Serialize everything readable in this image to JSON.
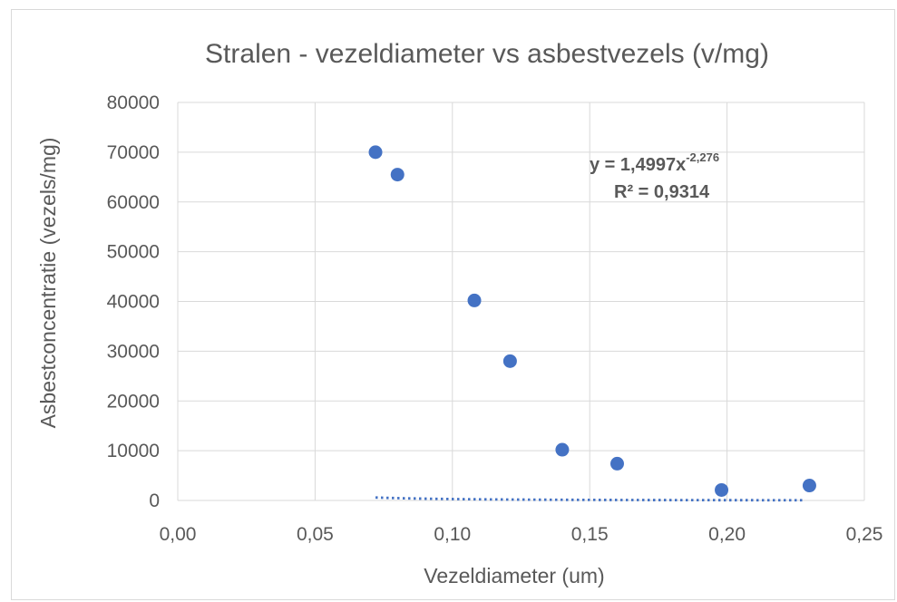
{
  "chart_data": {
    "type": "scatter",
    "title": "Stralen - vezeldiameter vs asbestvezels (v/mg)",
    "xlabel": "Vezeldiameter (um)",
    "ylabel": "Asbestconcentratie (vezels/mg)",
    "xlim": [
      0,
      0.25
    ],
    "ylim": [
      0,
      80000
    ],
    "x_ticks": [
      "0,00",
      "0,05",
      "0,10",
      "0,15",
      "0,20",
      "0,25"
    ],
    "y_ticks": [
      "0",
      "10000",
      "20000",
      "30000",
      "40000",
      "50000",
      "60000",
      "70000",
      "80000"
    ],
    "grid": true,
    "legend": "none",
    "colors": {
      "marker": "#4472c4",
      "trendline": "#4472c4",
      "gridline": "#d9d9d9",
      "text": "#595959"
    },
    "series": [
      {
        "x": [
          0.072,
          0.08,
          0.108,
          0.121,
          0.14,
          0.16,
          0.198,
          0.23
        ],
        "y": [
          70000,
          65500,
          40200,
          28000,
          10200,
          7400,
          2100,
          3000
        ]
      }
    ],
    "trendline": {
      "type": "power",
      "coefficient": 1.4997,
      "exponent": -2.276,
      "x_range": [
        0.072,
        0.228
      ],
      "equation_prefix": "y = 1,4997x",
      "equation_exponent": "-2,276",
      "r_squared_label": "R² = 0,9314"
    }
  }
}
